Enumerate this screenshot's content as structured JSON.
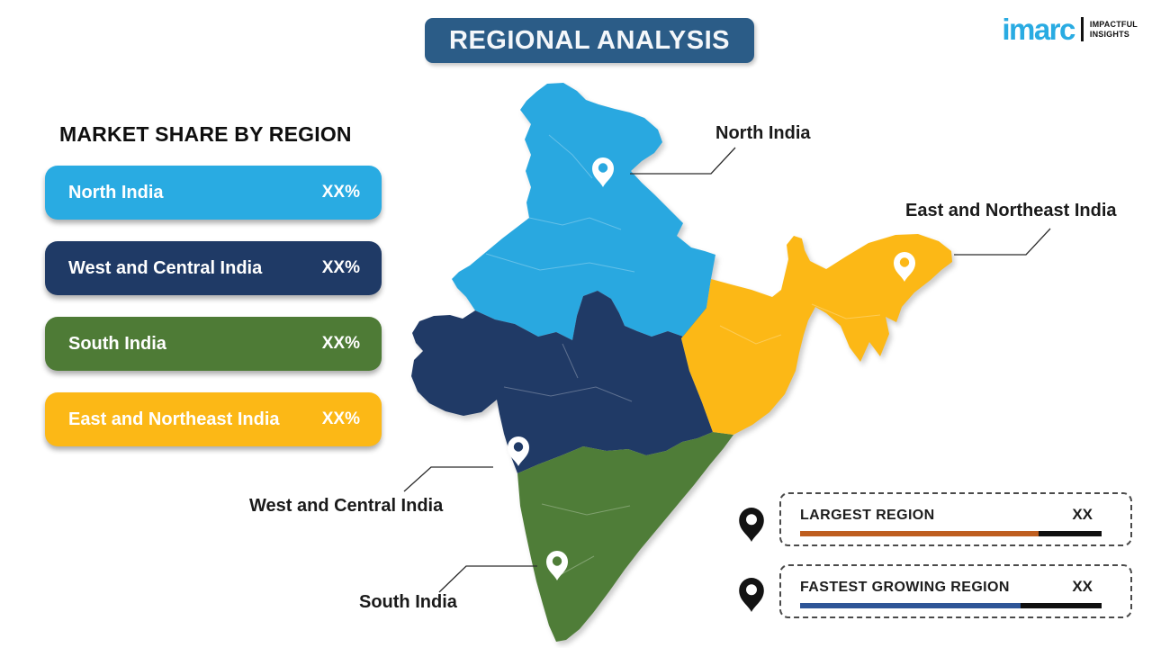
{
  "title": "REGIONAL ANALYSIS",
  "logo": {
    "brand": "imarc",
    "tagline_line1": "IMPACTFUL",
    "tagline_line2": "INSIGHTS",
    "brand_color": "#29abe2"
  },
  "share_panel": {
    "heading": "MARKET SHARE BY REGION",
    "items": [
      {
        "label": "North India",
        "value": "XX%",
        "color": "#29abe2"
      },
      {
        "label": "West and Central India",
        "value": "XX%",
        "color": "#1f3a66"
      },
      {
        "label": "South India",
        "value": "XX%",
        "color": "#4e7b36"
      },
      {
        "label": "East and Northeast India",
        "value": "XX%",
        "color": "#fcb816"
      }
    ]
  },
  "map": {
    "regions": [
      {
        "name": "North India",
        "color": "#29a8e0"
      },
      {
        "name": "West and Central India",
        "color": "#203a66"
      },
      {
        "name": "South India",
        "color": "#4f7d38"
      },
      {
        "name": "East and Northeast India",
        "color": "#fcb816"
      }
    ],
    "labels": {
      "north": "North India",
      "east": "East and Northeast India",
      "west": "West and Central India",
      "south": "South India"
    }
  },
  "callouts": [
    {
      "label": "LARGEST REGION",
      "value": "XX",
      "bar_color": "#bf5e1f",
      "bar_fill_pct": 79
    },
    {
      "label": "FASTEST GROWING REGION",
      "value": "XX",
      "bar_color": "#2e5597",
      "bar_fill_pct": 73
    }
  ]
}
